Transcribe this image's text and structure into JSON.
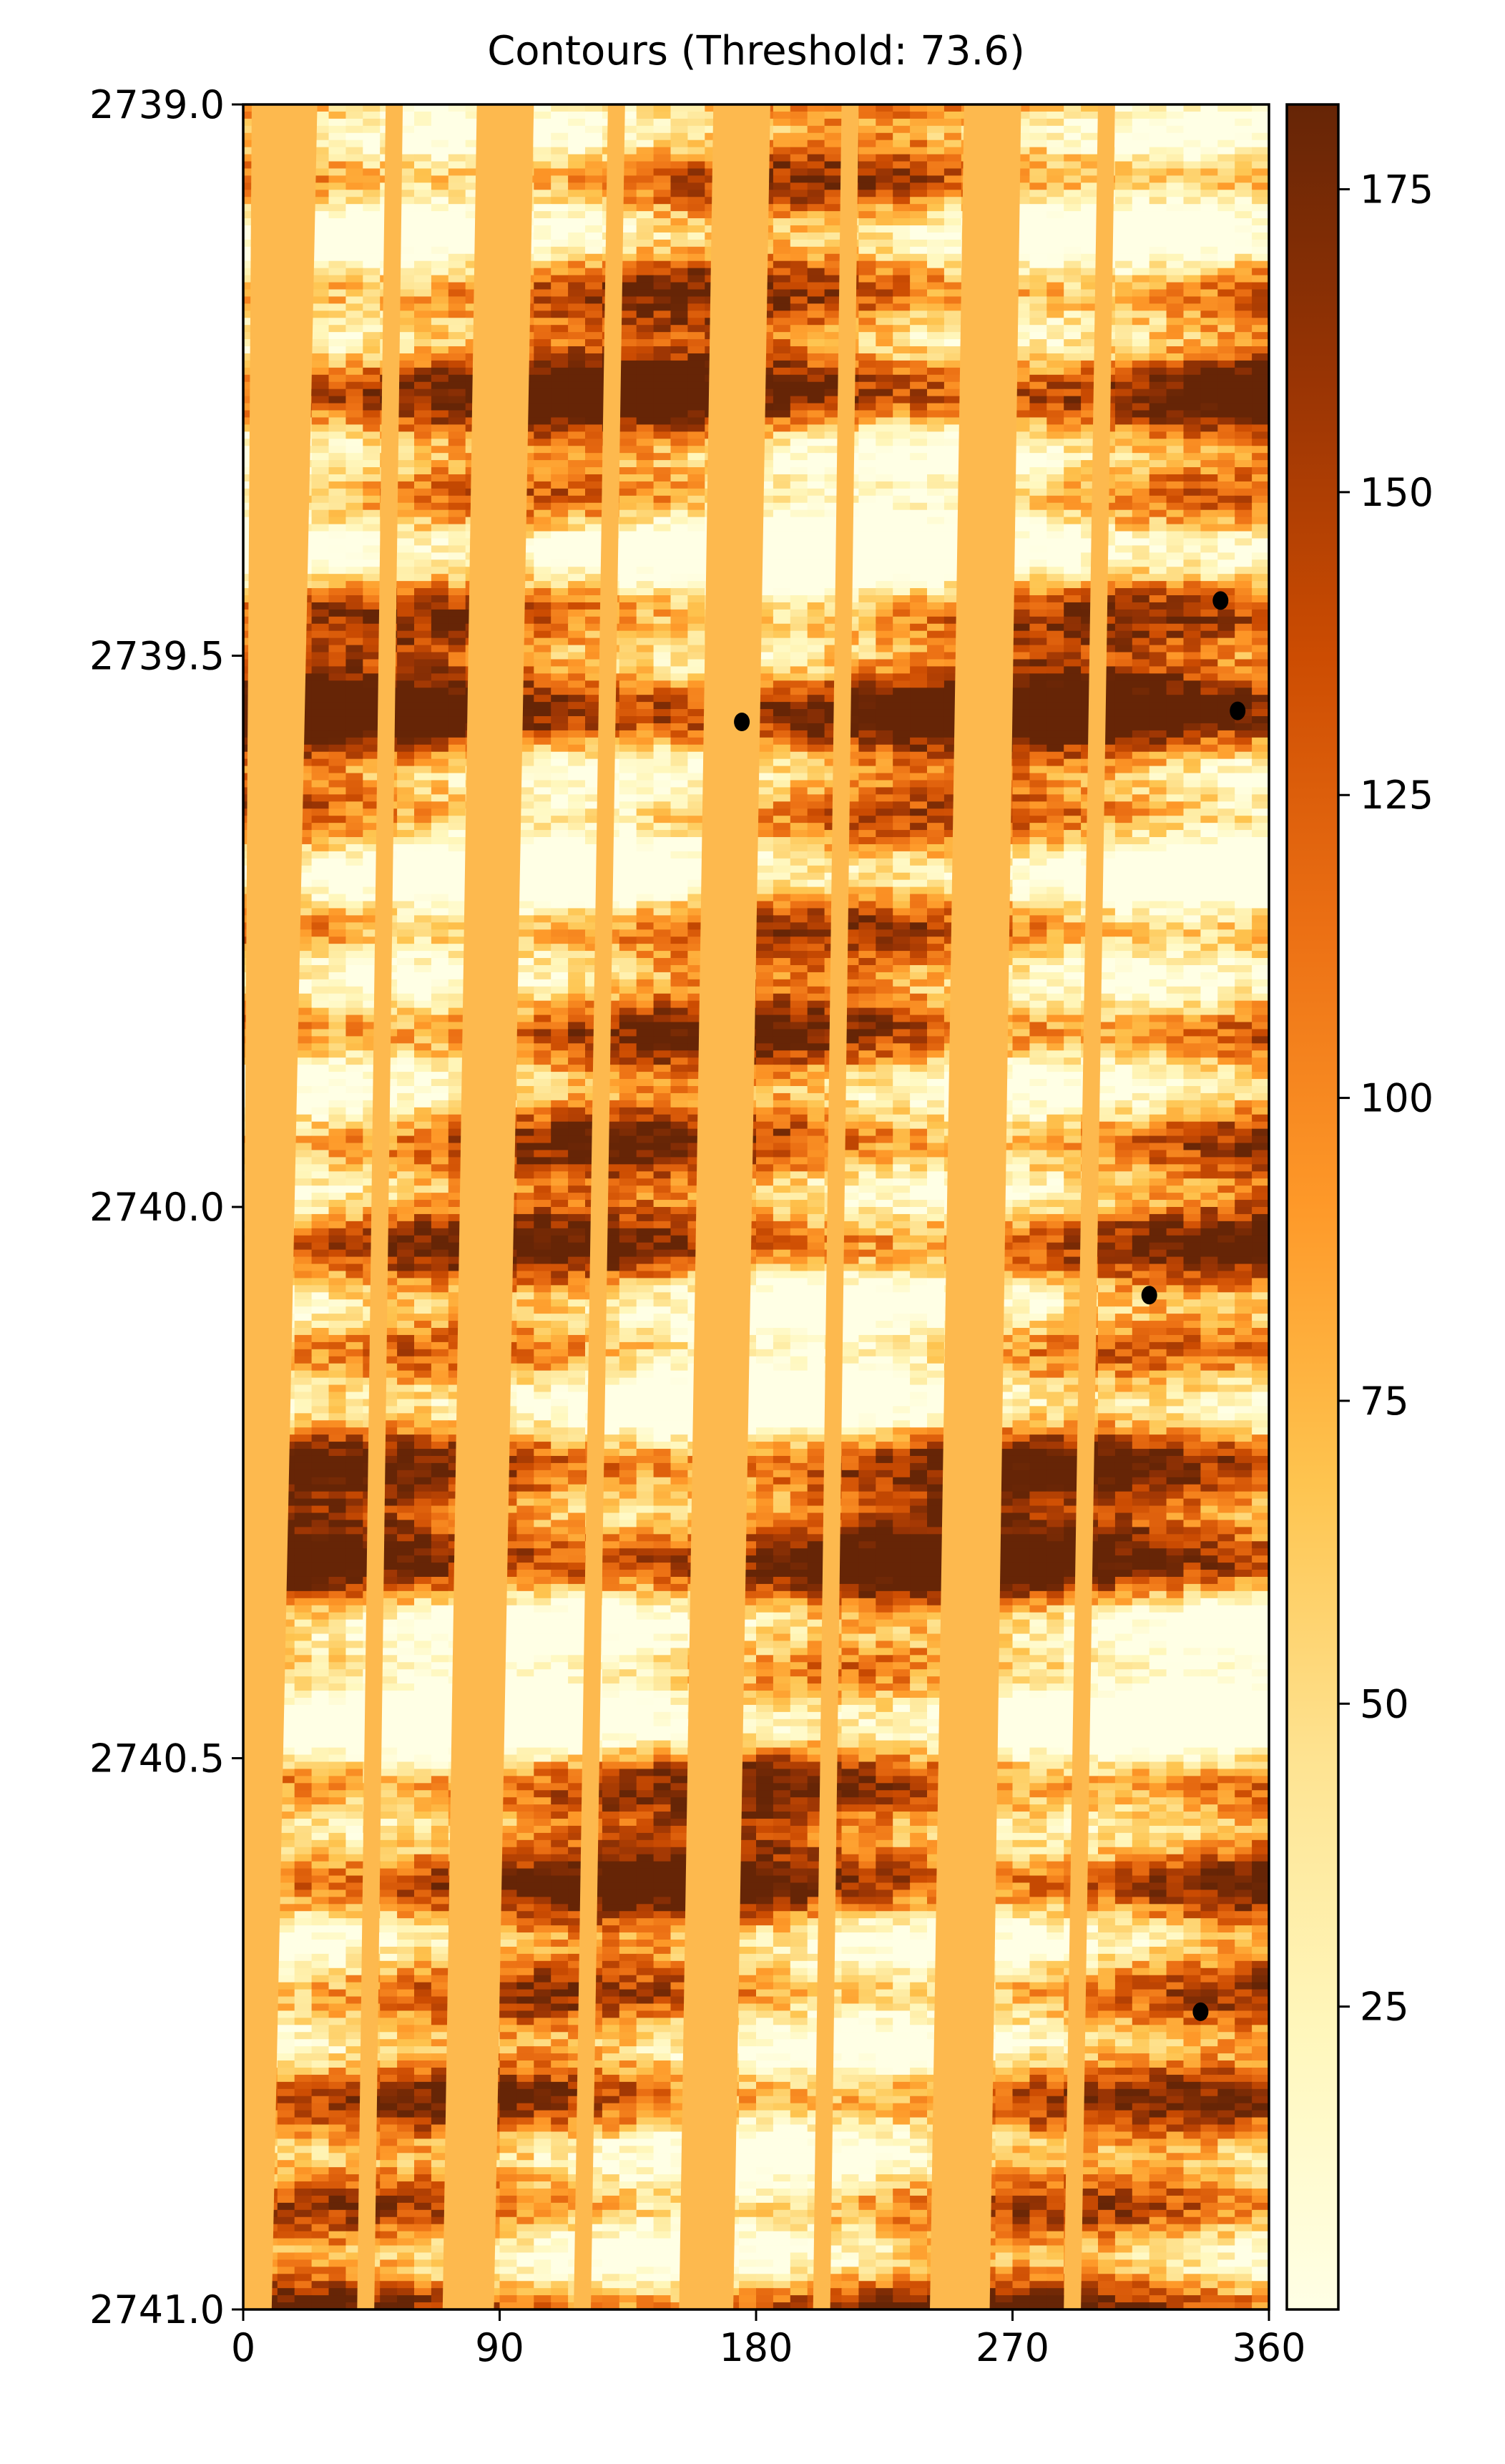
{
  "chart_data": {
    "type": "heatmap",
    "title": "Contours (Threshold: 73.6)",
    "xlabel": "",
    "ylabel": "",
    "xlim": [
      0,
      360
    ],
    "ylim": [
      2741.0,
      2739.0
    ],
    "x_ticks": [
      {
        "value": 0,
        "label": "0"
      },
      {
        "value": 90,
        "label": "90"
      },
      {
        "value": 180,
        "label": "180"
      },
      {
        "value": 270,
        "label": "270"
      },
      {
        "value": 360,
        "label": "360"
      }
    ],
    "y_ticks": [
      {
        "value": 2739.0,
        "label": "2739.0"
      },
      {
        "value": 2739.5,
        "label": "2739.5"
      },
      {
        "value": 2740.0,
        "label": "2740.0"
      },
      {
        "value": 2740.5,
        "label": "2740.5"
      },
      {
        "value": 2741.0,
        "label": "2741.0"
      }
    ],
    "threshold": 73.6,
    "colormap": "YlOrBr",
    "colormap_stops": [
      "#ffffe5",
      "#fff7bc",
      "#fee391",
      "#fec44f",
      "#fe9929",
      "#ec7014",
      "#cc4c02",
      "#993404",
      "#662506"
    ],
    "gap_fill_color": "#fdb94e",
    "contour_color": "#000000",
    "colorbar": {
      "range": [
        0,
        182
      ],
      "ticks": [
        {
          "value": 25,
          "label": "25"
        },
        {
          "value": 50,
          "label": "50"
        },
        {
          "value": 75,
          "label": "75"
        },
        {
          "value": 100,
          "label": "100"
        },
        {
          "value": 125,
          "label": "125"
        },
        {
          "value": 150,
          "label": "150"
        },
        {
          "value": 175,
          "label": "175"
        }
      ]
    },
    "pad_gaps": [
      {
        "x_top": [
          3,
          26
        ],
        "x_bottom": [
          -2,
          10
        ]
      },
      {
        "x_top": [
          50,
          56
        ],
        "x_bottom": [
          40,
          46
        ]
      },
      {
        "x_top": [
          82,
          102
        ],
        "x_bottom": [
          70,
          88
        ]
      },
      {
        "x_top": [
          128,
          134
        ],
        "x_bottom": [
          116,
          122
        ]
      },
      {
        "x_top": [
          165,
          185
        ],
        "x_bottom": [
          153,
          172
        ]
      },
      {
        "x_top": [
          210,
          216
        ],
        "x_bottom": [
          200,
          206
        ]
      },
      {
        "x_top": [
          253,
          273
        ],
        "x_bottom": [
          241,
          262
        ]
      },
      {
        "x_top": [
          300,
          306
        ],
        "x_bottom": [
          288,
          294
        ]
      }
    ],
    "contours": [
      {
        "x": 175,
        "y": 2739.56
      },
      {
        "x": 343,
        "y": 2739.45
      },
      {
        "x": 349,
        "y": 2739.55
      },
      {
        "x": 318,
        "y": 2740.08
      },
      {
        "x": 336,
        "y": 2740.73
      }
    ]
  }
}
